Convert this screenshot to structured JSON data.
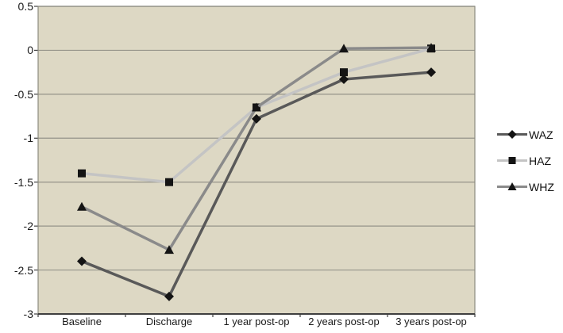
{
  "chart_data": {
    "type": "line",
    "title": "",
    "xlabel": "",
    "ylabel": "",
    "categories": [
      "Baseline",
      "Discharge",
      "1 year post-op",
      "2 years post-op",
      "3 years post-op"
    ],
    "series": [
      {
        "name": "WAZ",
        "marker": "diamond",
        "line_color": "#595959",
        "marker_color": "#141414",
        "values": [
          -2.4,
          -2.8,
          -0.78,
          -0.33,
          -0.25
        ]
      },
      {
        "name": "HAZ",
        "marker": "square",
        "line_color": "#c4c4c4",
        "marker_color": "#141414",
        "values": [
          -1.4,
          -1.5,
          -0.65,
          -0.25,
          0.02
        ]
      },
      {
        "name": "WHZ",
        "marker": "triangle",
        "line_color": "#8a8a8a",
        "marker_color": "#141414",
        "values": [
          -1.78,
          -2.27,
          -0.65,
          0.02,
          0.03
        ]
      }
    ],
    "ylim": [
      -3,
      0.5
    ],
    "yticks": [
      0.5,
      0,
      -0.5,
      -1,
      -1.5,
      -2,
      -2.5,
      -3
    ],
    "grid": true,
    "legend_position": "right",
    "plot_bg_color": "#ddd8c4",
    "grid_color": "#95948a",
    "border_color": "#8c8b80",
    "axis_color": "#3f3f3f",
    "text_color": "#1a1a1a"
  }
}
